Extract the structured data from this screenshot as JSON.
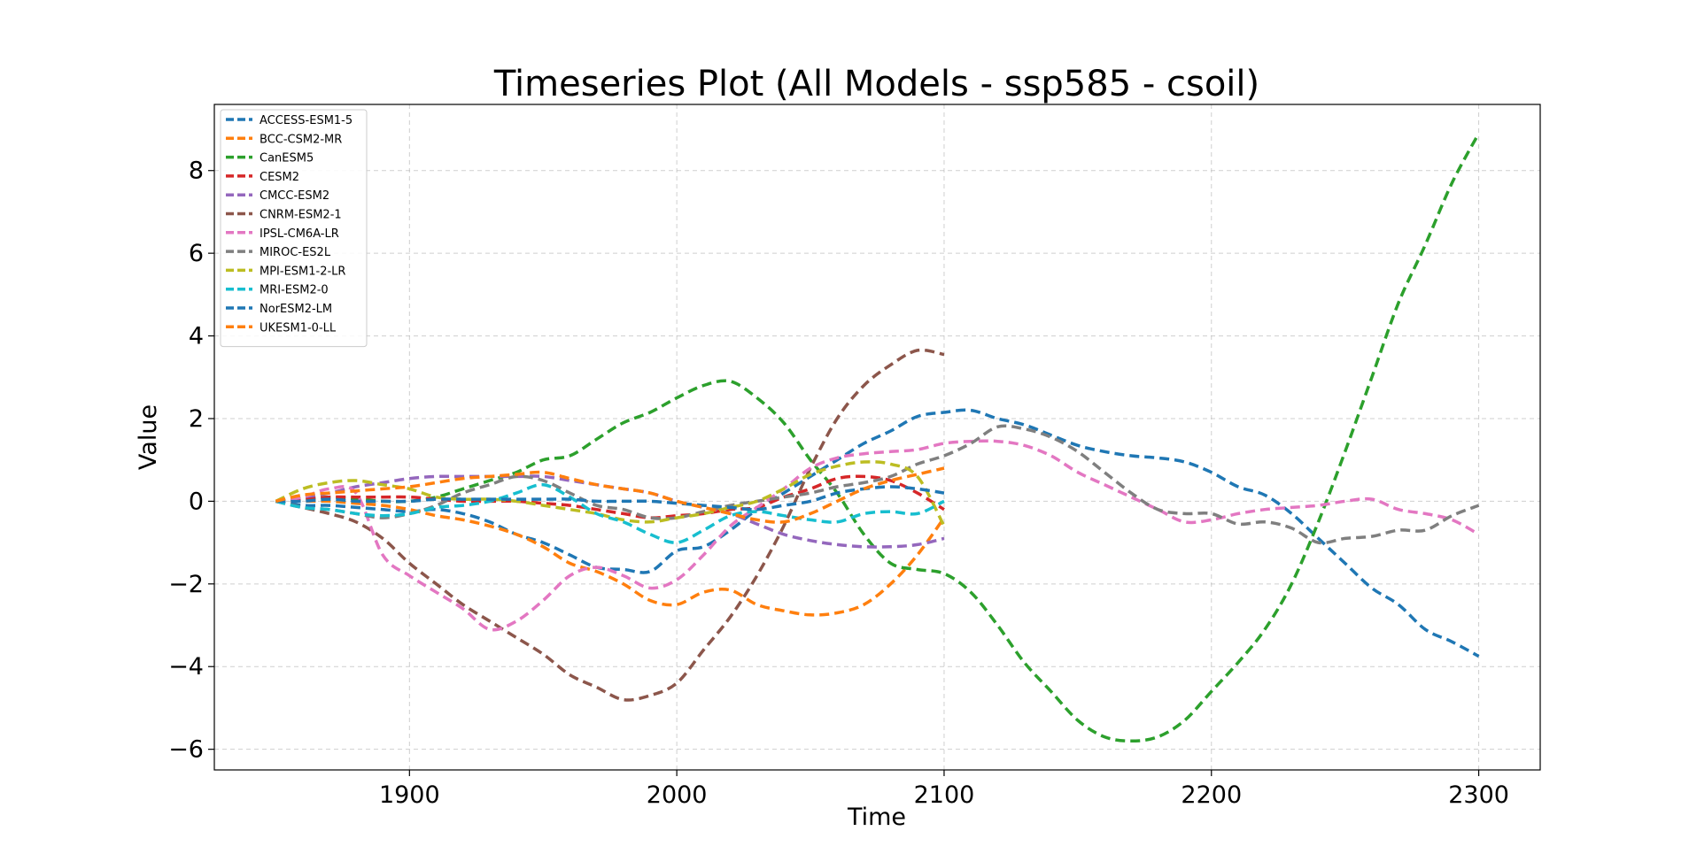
{
  "chart_data": {
    "type": "line",
    "title": "Timeseries Plot (All Models - ssp585 - csoil)",
    "xlabel": "Time",
    "ylabel": "Value",
    "xlim": [
      1827,
      2323
    ],
    "ylim": [
      -6.5,
      9.6
    ],
    "xticks": [
      1900,
      2000,
      2100,
      2200,
      2300
    ],
    "yticks": [
      -6,
      -4,
      -2,
      0,
      2,
      4,
      6,
      8
    ],
    "grid": true,
    "legend_position": "top-left",
    "line_style": "dashed",
    "series": [
      {
        "name": "ACCESS-ESM1-5",
        "color": "#1f77b4",
        "x": [
          1850,
          1860,
          1870,
          1880,
          1890,
          1900,
          1910,
          1920,
          1930,
          1940,
          1950,
          1960,
          1970,
          1980,
          1990,
          2000,
          2010,
          2020,
          2030,
          2040,
          2050,
          2060,
          2070,
          2080,
          2090,
          2100,
          2110,
          2120,
          2130,
          2140,
          2150,
          2160,
          2170,
          2180,
          2190,
          2200,
          2210,
          2220,
          2230,
          2240,
          2250,
          2260,
          2270,
          2280,
          2290,
          2300
        ],
        "y": [
          0.0,
          -0.1,
          -0.1,
          -0.15,
          -0.2,
          -0.25,
          -0.2,
          -0.3,
          -0.5,
          -0.8,
          -1.0,
          -1.3,
          -1.6,
          -1.65,
          -1.7,
          -1.2,
          -1.1,
          -0.7,
          -0.2,
          0.2,
          0.6,
          1.0,
          1.4,
          1.7,
          2.05,
          2.15,
          2.2,
          2.0,
          1.85,
          1.6,
          1.35,
          1.2,
          1.1,
          1.05,
          0.95,
          0.7,
          0.35,
          0.15,
          -0.3,
          -0.9,
          -1.5,
          -2.1,
          -2.5,
          -3.1,
          -3.4,
          -3.75
        ]
      },
      {
        "name": "BCC-CSM2-MR",
        "color": "#ff7f0e",
        "x": [
          1850,
          1860,
          1870,
          1880,
          1890,
          1900,
          1910,
          1920,
          1930,
          1940,
          1950,
          1960,
          1970,
          1980,
          1990,
          2000,
          2010,
          2020,
          2030,
          2040,
          2050,
          2060,
          2070,
          2080,
          2090,
          2100
        ],
        "y": [
          0.0,
          0.0,
          0.0,
          -0.05,
          -0.1,
          -0.2,
          -0.35,
          -0.45,
          -0.6,
          -0.8,
          -1.1,
          -1.5,
          -1.7,
          -2.0,
          -2.4,
          -2.5,
          -2.2,
          -2.15,
          -2.5,
          -2.65,
          -2.75,
          -2.7,
          -2.5,
          -2.0,
          -1.3,
          -0.4
        ]
      },
      {
        "name": "CanESM5",
        "color": "#2ca02c",
        "x": [
          1850,
          1860,
          1870,
          1880,
          1890,
          1900,
          1910,
          1920,
          1930,
          1940,
          1950,
          1960,
          1970,
          1980,
          1990,
          2000,
          2010,
          2020,
          2030,
          2040,
          2050,
          2060,
          2070,
          2080,
          2090,
          2100,
          2110,
          2120,
          2130,
          2140,
          2150,
          2160,
          2170,
          2180,
          2190,
          2200,
          2210,
          2220,
          2230,
          2240,
          2250,
          2260,
          2270,
          2280,
          2290,
          2300
        ],
        "y": [
          0.0,
          0.05,
          0.1,
          0.05,
          0.0,
          0.0,
          0.1,
          0.3,
          0.5,
          0.7,
          1.0,
          1.1,
          1.5,
          1.9,
          2.15,
          2.5,
          2.8,
          2.9,
          2.5,
          1.9,
          1.0,
          0.2,
          -0.8,
          -1.5,
          -1.65,
          -1.75,
          -2.2,
          -3.0,
          -3.9,
          -4.6,
          -5.3,
          -5.7,
          -5.8,
          -5.7,
          -5.3,
          -4.6,
          -3.9,
          -3.1,
          -2.0,
          -0.5,
          1.2,
          3.0,
          4.8,
          6.2,
          7.7,
          8.9
        ]
      },
      {
        "name": "CESM2",
        "color": "#d62728",
        "x": [
          1850,
          1860,
          1870,
          1880,
          1890,
          1900,
          1910,
          1920,
          1930,
          1940,
          1950,
          1960,
          1970,
          1980,
          1990,
          2000,
          2010,
          2020,
          2030,
          2040,
          2050,
          2060,
          2070,
          2080,
          2090,
          2100
        ],
        "y": [
          0.0,
          0.05,
          0.1,
          0.1,
          0.1,
          0.1,
          0.05,
          0.0,
          0.0,
          0.0,
          -0.05,
          -0.1,
          -0.2,
          -0.3,
          -0.4,
          -0.35,
          -0.3,
          -0.2,
          -0.15,
          0.1,
          0.3,
          0.55,
          0.6,
          0.5,
          0.2,
          -0.2
        ]
      },
      {
        "name": "CMCC-ESM2",
        "color": "#9467bd",
        "x": [
          1850,
          1860,
          1870,
          1880,
          1890,
          1900,
          1910,
          1920,
          1930,
          1940,
          1950,
          1960,
          1970,
          1980,
          1990,
          2000,
          2010,
          2020,
          2030,
          2040,
          2050,
          2060,
          2070,
          2080,
          2090,
          2100
        ],
        "y": [
          0.0,
          0.1,
          0.2,
          0.35,
          0.45,
          0.55,
          0.6,
          0.6,
          0.6,
          0.6,
          0.6,
          0.5,
          0.4,
          0.3,
          0.2,
          0.0,
          -0.15,
          -0.3,
          -0.55,
          -0.8,
          -0.95,
          -1.05,
          -1.1,
          -1.1,
          -1.05,
          -0.9
        ]
      },
      {
        "name": "CNRM-ESM2-1",
        "color": "#8c564b",
        "x": [
          1850,
          1860,
          1870,
          1880,
          1890,
          1900,
          1910,
          1920,
          1930,
          1940,
          1950,
          1960,
          1970,
          1980,
          1990,
          2000,
          2010,
          2020,
          2030,
          2040,
          2050,
          2060,
          2070,
          2080,
          2090,
          2100
        ],
        "y": [
          0.0,
          -0.15,
          -0.3,
          -0.5,
          -0.9,
          -1.5,
          -2.0,
          -2.5,
          -2.9,
          -3.3,
          -3.7,
          -4.2,
          -4.5,
          -4.8,
          -4.7,
          -4.4,
          -3.6,
          -2.8,
          -1.8,
          -0.6,
          0.8,
          2.0,
          2.8,
          3.3,
          3.65,
          3.55
        ]
      },
      {
        "name": "IPSL-CM6A-LR",
        "color": "#e377c2",
        "x": [
          1850,
          1860,
          1870,
          1880,
          1890,
          1900,
          1910,
          1920,
          1930,
          1940,
          1950,
          1960,
          1970,
          1980,
          1990,
          2000,
          2010,
          2020,
          2030,
          2040,
          2050,
          2060,
          2070,
          2080,
          2090,
          2100,
          2110,
          2120,
          2130,
          2140,
          2150,
          2160,
          2170,
          2180,
          2190,
          2200,
          2210,
          2220,
          2230,
          2240,
          2250,
          2260,
          2270,
          2280,
          2290,
          2300
        ],
        "y": [
          0.0,
          0.1,
          0.3,
          0.2,
          -1.3,
          -1.8,
          -2.2,
          -2.6,
          -3.1,
          -2.9,
          -2.4,
          -1.8,
          -1.6,
          -1.8,
          -2.1,
          -1.9,
          -1.3,
          -0.6,
          -0.15,
          0.3,
          0.8,
          1.05,
          1.15,
          1.2,
          1.25,
          1.4,
          1.45,
          1.45,
          1.35,
          1.1,
          0.7,
          0.4,
          0.1,
          -0.2,
          -0.5,
          -0.45,
          -0.3,
          -0.2,
          -0.15,
          -0.1,
          0.0,
          0.05,
          -0.2,
          -0.3,
          -0.45,
          -0.8
        ]
      },
      {
        "name": "MIROC-ES2L",
        "color": "#7f7f7f",
        "x": [
          1850,
          1860,
          1870,
          1880,
          1890,
          1900,
          1910,
          1920,
          1930,
          1940,
          1950,
          1960,
          1970,
          1980,
          1990,
          2000,
          2010,
          2020,
          2030,
          2040,
          2050,
          2060,
          2070,
          2080,
          2090,
          2100,
          2110,
          2120,
          2130,
          2140,
          2150,
          2160,
          2170,
          2180,
          2190,
          2200,
          2210,
          2220,
          2230,
          2240,
          2250,
          2260,
          2270,
          2280,
          2290,
          2300
        ],
        "y": [
          0.0,
          -0.15,
          -0.2,
          -0.3,
          -0.4,
          -0.3,
          -0.1,
          0.2,
          0.4,
          0.6,
          0.5,
          0.2,
          -0.1,
          -0.2,
          -0.4,
          -0.4,
          -0.25,
          -0.1,
          0.0,
          0.1,
          0.2,
          0.35,
          0.45,
          0.6,
          0.9,
          1.1,
          1.4,
          1.8,
          1.75,
          1.55,
          1.2,
          0.7,
          0.2,
          -0.2,
          -0.3,
          -0.3,
          -0.55,
          -0.5,
          -0.65,
          -1.0,
          -0.9,
          -0.85,
          -0.7,
          -0.7,
          -0.35,
          -0.1
        ]
      },
      {
        "name": "MPI-ESM1-2-LR",
        "color": "#bcbd22",
        "x": [
          1850,
          1860,
          1870,
          1880,
          1890,
          1900,
          1910,
          1920,
          1930,
          1940,
          1950,
          1960,
          1970,
          1980,
          1990,
          2000,
          2010,
          2020,
          2030,
          2040,
          2050,
          2060,
          2070,
          2080,
          2090,
          2100
        ],
        "y": [
          0.0,
          0.3,
          0.45,
          0.5,
          0.4,
          0.3,
          0.1,
          0.05,
          0.05,
          0.0,
          -0.1,
          -0.2,
          -0.3,
          -0.45,
          -0.5,
          -0.4,
          -0.3,
          -0.15,
          0.0,
          0.3,
          0.65,
          0.85,
          0.95,
          0.9,
          0.6,
          -0.6
        ]
      },
      {
        "name": "MRI-ESM2-0",
        "color": "#17becf",
        "x": [
          1850,
          1860,
          1870,
          1880,
          1890,
          1900,
          1910,
          1920,
          1930,
          1940,
          1950,
          1960,
          1970,
          1980,
          1990,
          2000,
          2010,
          2020,
          2030,
          2040,
          2050,
          2060,
          2070,
          2080,
          2090,
          2100
        ],
        "y": [
          0.0,
          -0.15,
          -0.2,
          -0.3,
          -0.35,
          -0.3,
          -0.15,
          -0.1,
          0.0,
          0.2,
          0.4,
          0.1,
          -0.3,
          -0.5,
          -0.8,
          -1.0,
          -0.7,
          -0.35,
          -0.25,
          -0.35,
          -0.45,
          -0.5,
          -0.3,
          -0.25,
          -0.3,
          0.0
        ]
      },
      {
        "name": "NorESM2-LM",
        "color": "#1f77b4",
        "x": [
          1850,
          1860,
          1870,
          1880,
          1890,
          1900,
          1910,
          1920,
          1930,
          1940,
          1950,
          1960,
          1970,
          1980,
          1990,
          2000,
          2010,
          2020,
          2030,
          2040,
          2050,
          2060,
          2070,
          2080,
          2090,
          2100
        ],
        "y": [
          0.0,
          0.0,
          0.05,
          0.0,
          0.0,
          0.0,
          0.05,
          0.05,
          0.05,
          0.05,
          0.05,
          0.05,
          0.0,
          0.0,
          0.0,
          -0.05,
          -0.1,
          -0.15,
          -0.2,
          -0.1,
          0.0,
          0.2,
          0.3,
          0.35,
          0.3,
          0.2
        ]
      },
      {
        "name": "UKESM1-0-LL",
        "color": "#ff7f0e",
        "x": [
          1850,
          1860,
          1870,
          1880,
          1890,
          1900,
          1910,
          1920,
          1930,
          1940,
          1950,
          1960,
          1970,
          1980,
          1990,
          2000,
          2010,
          2020,
          2030,
          2040,
          2050,
          2060,
          2070,
          2080,
          2090,
          2100
        ],
        "y": [
          0.0,
          0.15,
          0.2,
          0.25,
          0.3,
          0.35,
          0.45,
          0.55,
          0.6,
          0.65,
          0.7,
          0.55,
          0.4,
          0.3,
          0.2,
          0.0,
          -0.15,
          -0.3,
          -0.45,
          -0.5,
          -0.3,
          0.0,
          0.3,
          0.5,
          0.65,
          0.8
        ]
      }
    ]
  }
}
